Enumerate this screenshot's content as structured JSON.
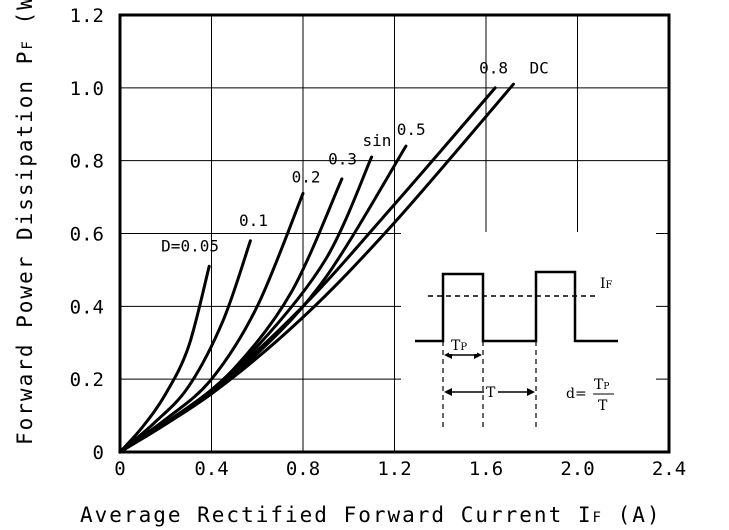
{
  "chart_data": {
    "type": "line",
    "title": "",
    "xlabel": "Average Rectified Forward Current I",
    "xlabel_sub": "F",
    "xlabel_unit": " (A)",
    "ylabel": "Forward Power Dissipation P",
    "ylabel_sub": "F",
    "ylabel_unit": " (W)",
    "xlim": [
      0,
      2.4
    ],
    "ylim": [
      0,
      1.2
    ],
    "xticks": [
      "0",
      "0.4",
      "0.8",
      "1.2",
      "1.6",
      "2.0",
      "2.4"
    ],
    "xtick_values": [
      0,
      0.4,
      0.8,
      1.2,
      1.6,
      2.0,
      2.4
    ],
    "yticks": [
      "0",
      "0.2",
      "0.4",
      "0.6",
      "0.8",
      "1.0",
      "1.2"
    ],
    "ytick_values": [
      0,
      0.2,
      0.4,
      0.6,
      0.8,
      1.0,
      1.2
    ],
    "grid": true,
    "series": [
      {
        "name": "D=0.05",
        "x": [
          0,
          0.1,
          0.2,
          0.3,
          0.39
        ],
        "y": [
          0,
          0.07,
          0.16,
          0.29,
          0.51
        ]
      },
      {
        "name": "0.1",
        "x": [
          0,
          0.15,
          0.3,
          0.45,
          0.57
        ],
        "y": [
          0,
          0.08,
          0.18,
          0.36,
          0.58
        ]
      },
      {
        "name": "0.2",
        "x": [
          0,
          0.2,
          0.4,
          0.6,
          0.8
        ],
        "y": [
          0,
          0.09,
          0.2,
          0.4,
          0.71
        ]
      },
      {
        "name": "0.3",
        "x": [
          0,
          0.25,
          0.5,
          0.75,
          0.97
        ],
        "y": [
          0,
          0.1,
          0.23,
          0.44,
          0.75
        ]
      },
      {
        "name": "sin",
        "x": [
          0,
          0.3,
          0.6,
          0.9,
          1.1
        ],
        "y": [
          0,
          0.12,
          0.29,
          0.53,
          0.81
        ]
      },
      {
        "name": "0.5",
        "x": [
          0,
          0.3,
          0.6,
          0.9,
          1.25
        ],
        "y": [
          0,
          0.12,
          0.27,
          0.48,
          0.84
        ]
      },
      {
        "name": "0.8",
        "x": [
          0,
          0.4,
          0.8,
          1.2,
          1.64
        ],
        "y": [
          0,
          0.17,
          0.4,
          0.68,
          1.0
        ]
      },
      {
        "name": "DC",
        "x": [
          0,
          0.4,
          0.8,
          1.2,
          1.72
        ],
        "y": [
          0,
          0.16,
          0.37,
          0.63,
          1.01
        ]
      }
    ],
    "curve_labels": [
      {
        "text": "D=0.05",
        "x": 0.18,
        "y": 0.55
      },
      {
        "text": "0.1",
        "x": 0.52,
        "y": 0.62
      },
      {
        "text": "0.2",
        "x": 0.75,
        "y": 0.74
      },
      {
        "text": "0.3",
        "x": 0.91,
        "y": 0.79
      },
      {
        "text": "sin",
        "x": 1.06,
        "y": 0.84
      },
      {
        "text": "0.5",
        "x": 1.21,
        "y": 0.87
      },
      {
        "text": "0.8",
        "x": 1.57,
        "y": 1.04
      },
      {
        "text": "DC",
        "x": 1.79,
        "y": 1.04
      }
    ],
    "inset": {
      "current_label": "I",
      "current_sub": "F",
      "tp_label": "T",
      "tp_sub": "P",
      "period_label": "T",
      "duty_prefix": "d=",
      "duty_num": "T",
      "duty_num_sub": "P",
      "duty_den": "T"
    }
  }
}
